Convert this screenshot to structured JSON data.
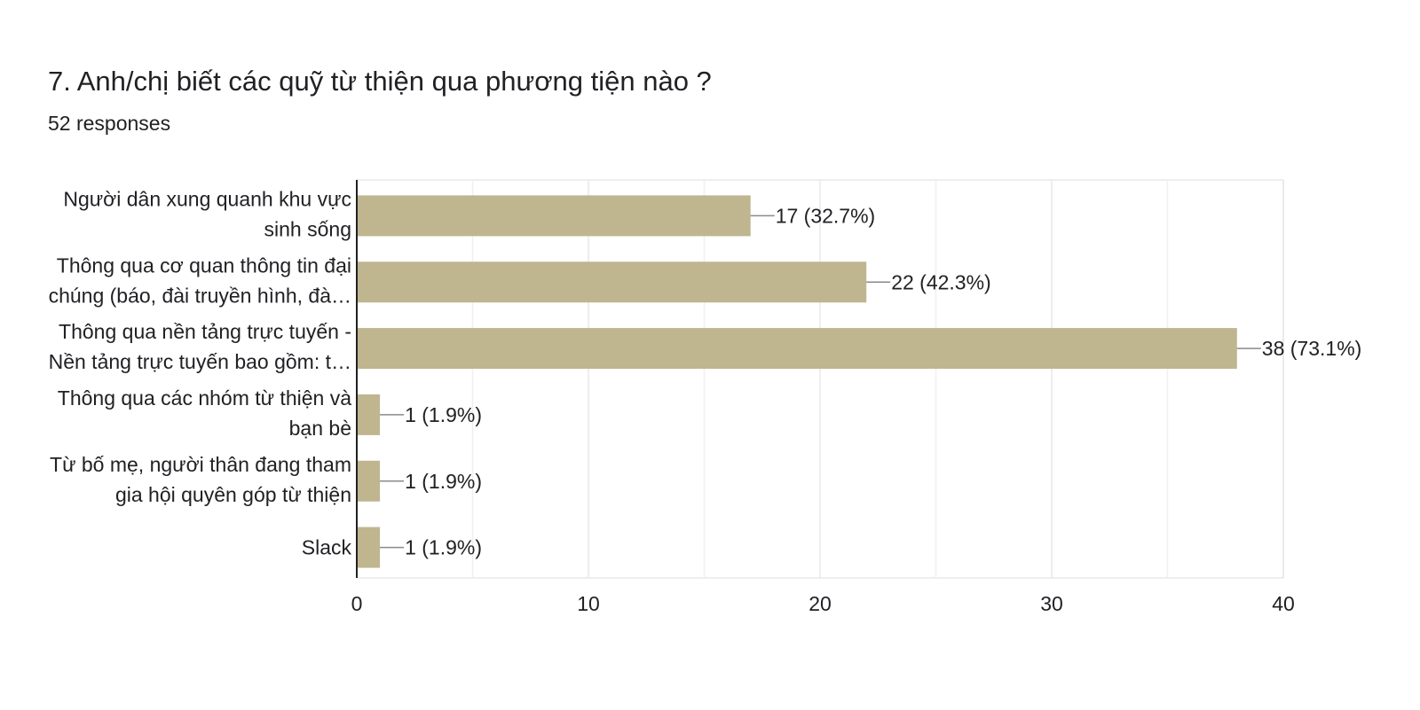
{
  "header": {
    "title": "7. Anh/chị biết các quỹ từ thiện qua phương tiện nào ?",
    "responses": "52 responses"
  },
  "chart_data": {
    "type": "bar",
    "orientation": "horizontal",
    "categories": [
      [
        "Người dân xung quanh khu vực",
        "sinh sống"
      ],
      [
        "Thông qua cơ quan thông tin đại",
        "chúng (báo, đài truyền hình, đà…"
      ],
      [
        "Thông qua nền tảng trực tuyến -",
        "Nền tảng trực tuyến bao gồm: t…"
      ],
      [
        "Thông qua các nhóm từ thiện và",
        "bạn bè"
      ],
      [
        "Từ bố mẹ, người thân đang tham",
        "gia hội quyên góp từ thiện"
      ],
      [
        "Slack"
      ]
    ],
    "values": [
      17,
      22,
      38,
      1,
      1,
      1
    ],
    "data_labels": [
      "17 (32.7%)",
      "22 (42.3%)",
      "38 (73.1%)",
      "1 (1.9%)",
      "1 (1.9%)",
      "1 (1.9%)"
    ],
    "xlim": [
      0,
      40
    ],
    "x_ticks": [
      0,
      10,
      20,
      30,
      40
    ],
    "minor_gridlines": [
      5,
      15,
      25,
      35
    ],
    "grid": true,
    "colors": {
      "bar": "#bfb58f",
      "grid": "#e8e8e8",
      "axis": "#202124",
      "leader": "#8a8a8a"
    }
  }
}
